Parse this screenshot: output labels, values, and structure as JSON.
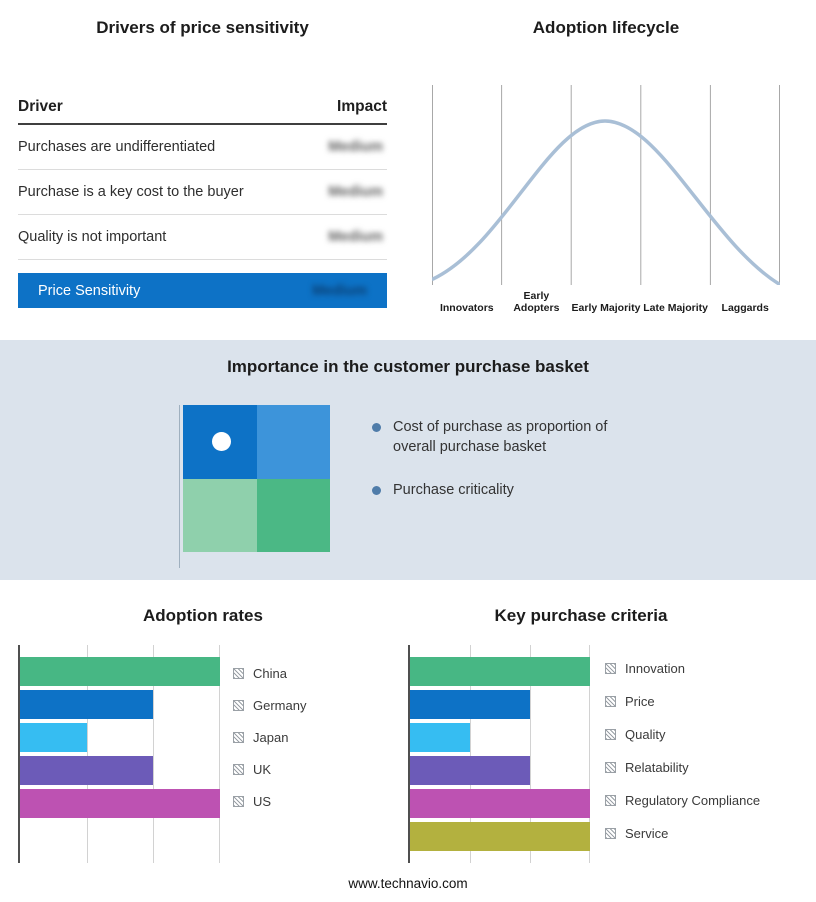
{
  "page": {
    "footer_url": "www.technavio.com"
  },
  "colors": {
    "band_background": "#dbe3ec",
    "highlight_row": "#0d72c6",
    "curve": "#a9bfd6",
    "bullet_marker": "#4f7ca9"
  },
  "drivers": {
    "title": "Drivers of price sensitivity",
    "columns": {
      "driver": "Driver",
      "impact": "Impact"
    },
    "rows": [
      {
        "driver": "Purchases are undifferentiated",
        "impact": "Medium"
      },
      {
        "driver": "Purchase is a key cost to the buyer",
        "impact": "Medium"
      },
      {
        "driver": "Quality is not important",
        "impact": "Medium"
      }
    ],
    "summary_row": {
      "label": "Price Sensitivity",
      "impact": "Medium"
    }
  },
  "basket": {
    "title": "Importance in the customer purchase basket",
    "bullets": [
      "Cost of purchase as proportion of overall purchase basket",
      "Purchase criticality"
    ],
    "quadrant_colors": [
      "#0d72c6",
      "#3d94da",
      "#8fd0ac",
      "#4bb885"
    ]
  },
  "chart_data": [
    {
      "type": "bar",
      "name": "adoption-rates",
      "title": "Adoption rates",
      "orientation": "horizontal",
      "categories": [
        "China",
        "Germany",
        "Japan",
        "UK",
        "US"
      ],
      "values": [
        3,
        2,
        1,
        2,
        3
      ],
      "xlim": [
        0,
        3
      ],
      "grid": true,
      "legend_position": "right",
      "colors": [
        "#47b784",
        "#0d72c6",
        "#36bdf2",
        "#6c5bb8",
        "#bd52b2"
      ]
    },
    {
      "type": "bar",
      "name": "key-purchase-criteria",
      "title": "Key purchase criteria",
      "orientation": "horizontal",
      "categories": [
        "Innovation",
        "Price",
        "Quality",
        "Relatability",
        "Regulatory Compliance",
        "Service"
      ],
      "values": [
        3,
        2,
        1,
        2,
        3,
        3
      ],
      "xlim": [
        0,
        3
      ],
      "grid": true,
      "legend_position": "right",
      "colors": [
        "#47b784",
        "#0d72c6",
        "#36bdf2",
        "#6c5bb8",
        "#bd52b2",
        "#b3b13f"
      ]
    },
    {
      "type": "line",
      "name": "adoption-lifecycle",
      "title": "Adoption lifecycle",
      "shape": "bell-curve",
      "categories": [
        "Innovators",
        "Early Adopters",
        "Early Majority",
        "Late Majority",
        "Laggards"
      ],
      "grid": true
    }
  ]
}
